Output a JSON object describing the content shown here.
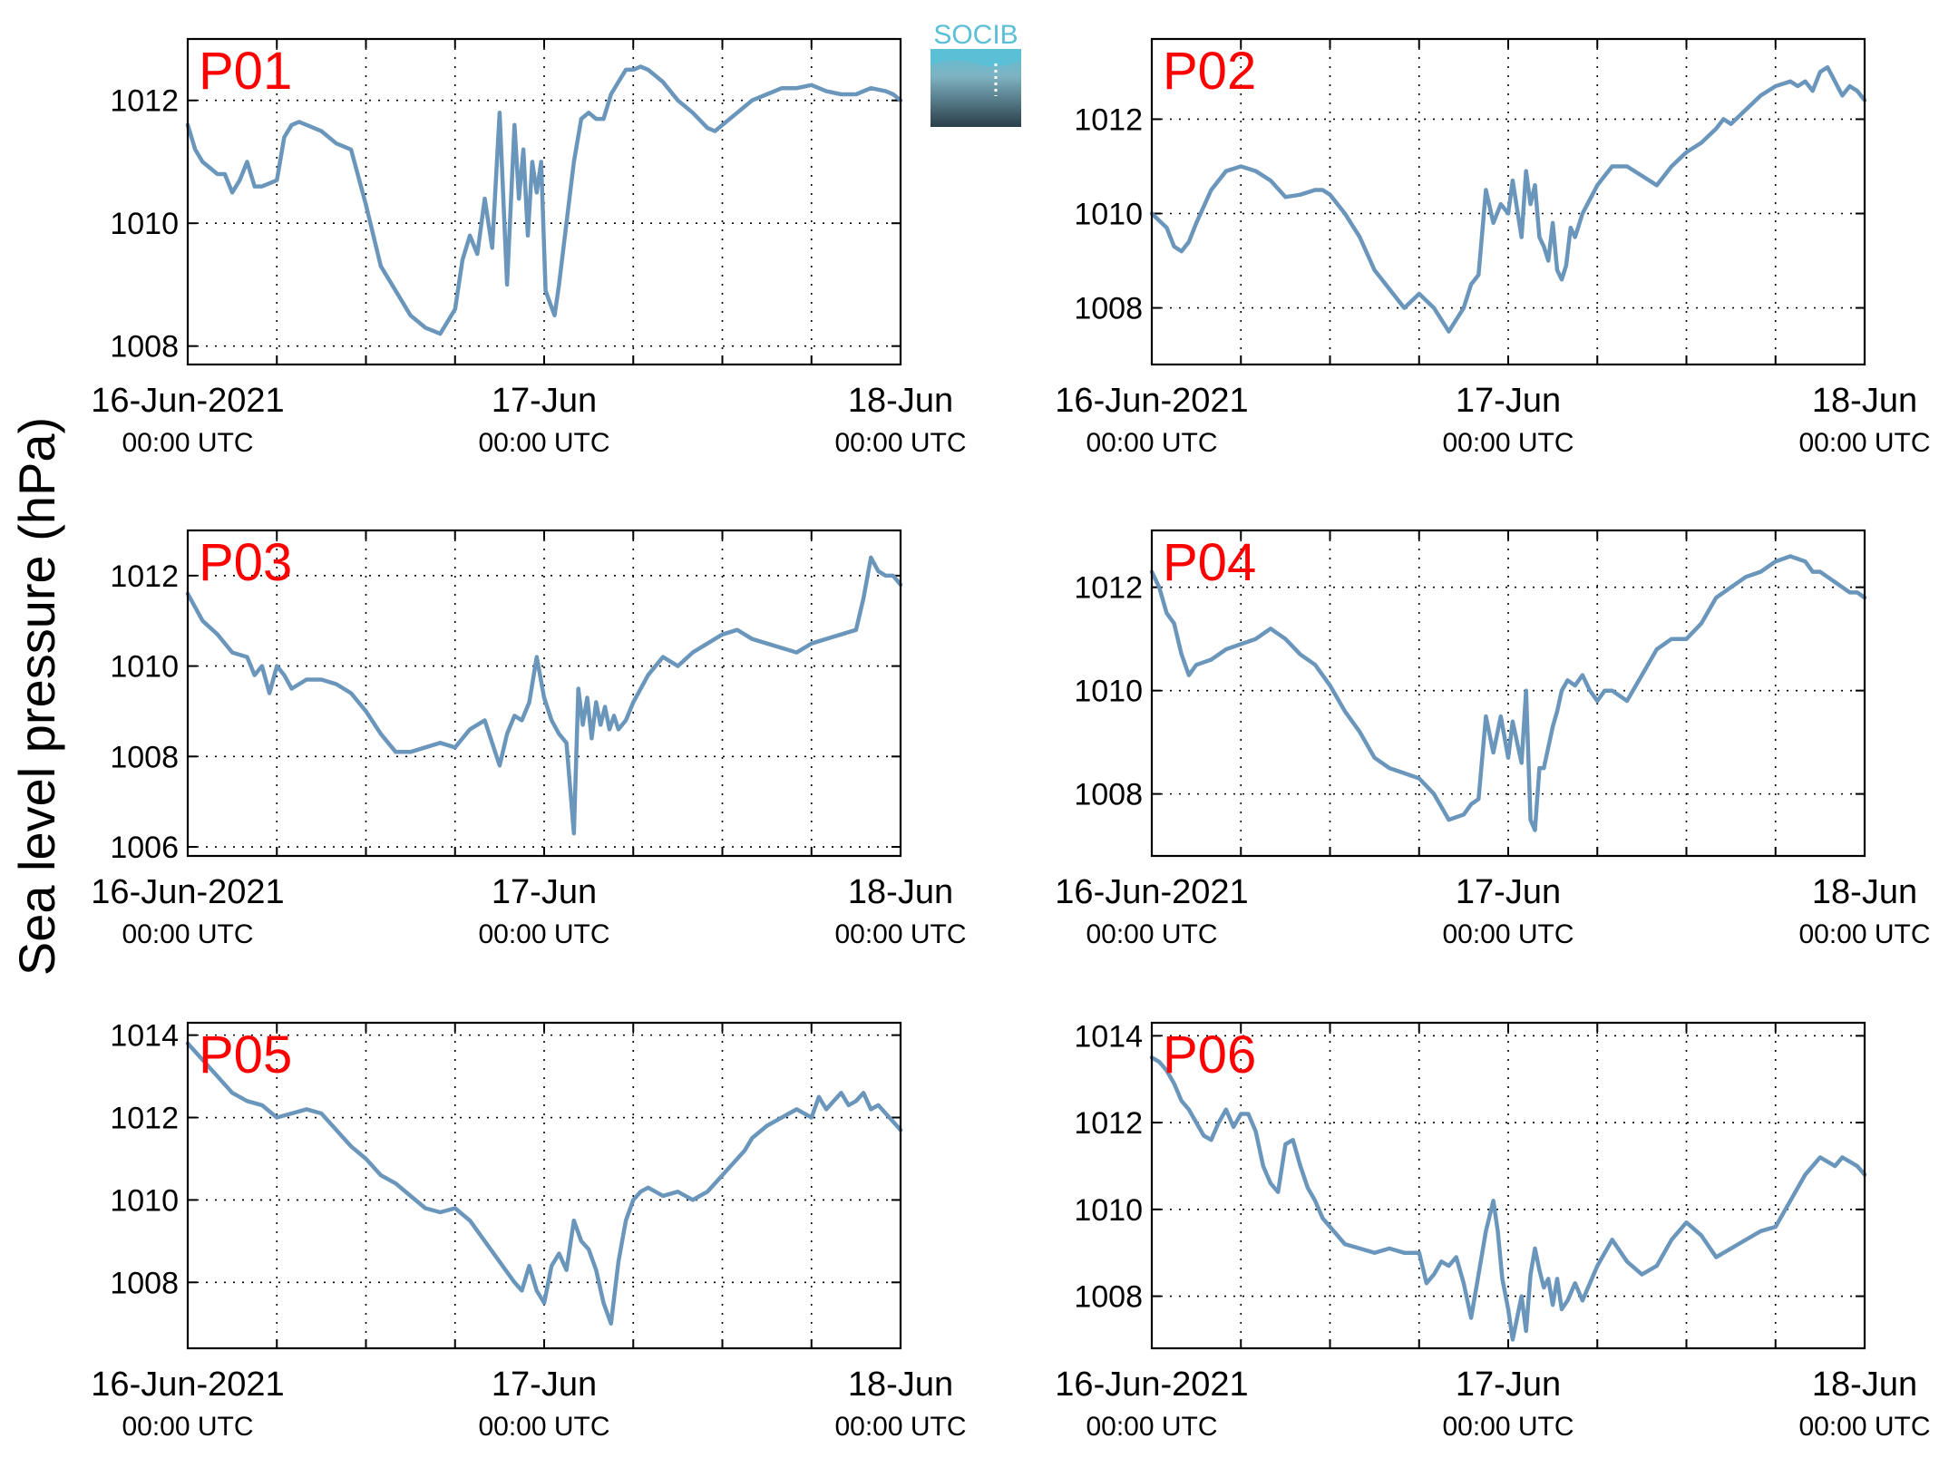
{
  "figure": {
    "ylabel": "Sea level pressure (hPa)",
    "logo_text": "SOCIB",
    "colors": {
      "line": "#6b96bc",
      "panel_label": "#ff0000",
      "axis": "#000000",
      "logo_top": "#5bbfd6",
      "logo_bottom": "#2b3e4a"
    },
    "x_tick_labels": [
      {
        "line1": "16-Jun-2021",
        "line2": "00:00 UTC"
      },
      {
        "line1": "17-Jun",
        "line2": "00:00 UTC"
      },
      {
        "line1": "18-Jun",
        "line2": "00:00 UTC"
      }
    ]
  },
  "chart_data": [
    {
      "type": "line",
      "label": "P01",
      "x_unit": "hours since 16-Jun-2021 00:00 UTC",
      "xlim": [
        0,
        48
      ],
      "ylim": [
        1007.7,
        1013
      ],
      "yticks": [
        1008,
        1010,
        1012
      ],
      "grid": true,
      "x": [
        0,
        0.5,
        1,
        1.5,
        2,
        2.5,
        3,
        3.5,
        4,
        4.5,
        5,
        6,
        6.5,
        7,
        7.5,
        8,
        8.5,
        9,
        10,
        11,
        12,
        13,
        14,
        15,
        16,
        17,
        18,
        18.5,
        19,
        19.5,
        20,
        20.5,
        21,
        21.5,
        22,
        22.3,
        22.6,
        22.9,
        23.2,
        23.5,
        23.8,
        24.1,
        24.4,
        24.7,
        25,
        25.3,
        25.6,
        26,
        26.5,
        27,
        27.5,
        28,
        28.5,
        29,
        29.5,
        30,
        30.5,
        31,
        32,
        33,
        34,
        35,
        35.5,
        36,
        37,
        38,
        39,
        40,
        41,
        42,
        43,
        44,
        45,
        46,
        47,
        47.5,
        48
      ],
      "y": [
        1011.6,
        1011.2,
        1011.0,
        1010.9,
        1010.8,
        1010.8,
        1010.5,
        1010.7,
        1011.0,
        1010.6,
        1010.6,
        1010.7,
        1011.4,
        1011.6,
        1011.65,
        1011.6,
        1011.55,
        1011.5,
        1011.3,
        1011.2,
        1010.3,
        1009.3,
        1008.9,
        1008.5,
        1008.3,
        1008.2,
        1008.6,
        1009.4,
        1009.8,
        1009.5,
        1010.4,
        1009.6,
        1011.8,
        1009.0,
        1011.6,
        1010.4,
        1011.2,
        1009.8,
        1011.0,
        1010.5,
        1011.0,
        1008.9,
        1008.7,
        1008.5,
        1009.0,
        1009.6,
        1010.2,
        1011.0,
        1011.7,
        1011.8,
        1011.7,
        1011.7,
        1012.1,
        1012.3,
        1012.5,
        1012.5,
        1012.55,
        1012.5,
        1012.3,
        1012.0,
        1011.8,
        1011.55,
        1011.5,
        1011.6,
        1011.8,
        1012.0,
        1012.1,
        1012.2,
        1012.2,
        1012.25,
        1012.15,
        1012.1,
        1012.1,
        1012.2,
        1012.15,
        1012.1,
        1012.0
      ]
    },
    {
      "type": "line",
      "label": "P02",
      "x_unit": "hours since 16-Jun-2021 00:00 UTC",
      "xlim": [
        0,
        48
      ],
      "ylim": [
        1006.8,
        1013.7
      ],
      "yticks": [
        1008,
        1010,
        1012
      ],
      "grid": true,
      "x": [
        0,
        1,
        1.5,
        2,
        2.5,
        3,
        4,
        5,
        6,
        7,
        8,
        9,
        10,
        11,
        11.5,
        12,
        13,
        14,
        15,
        16,
        17,
        18,
        19,
        20,
        21,
        21.5,
        22,
        22.5,
        23,
        23.5,
        24,
        24.3,
        24.6,
        24.9,
        25.2,
        25.5,
        25.8,
        26.1,
        26.4,
        26.7,
        27,
        27.3,
        27.6,
        27.9,
        28.2,
        28.5,
        29,
        29.5,
        30,
        30.5,
        31,
        32,
        33,
        34,
        35,
        36,
        37,
        38,
        38.5,
        39,
        40,
        41,
        42,
        43,
        43.5,
        44,
        44.5,
        45,
        45.5,
        46,
        46.5,
        47,
        47.5,
        48
      ],
      "y": [
        1010.0,
        1009.7,
        1009.3,
        1009.2,
        1009.4,
        1009.8,
        1010.5,
        1010.9,
        1011.0,
        1010.9,
        1010.7,
        1010.35,
        1010.4,
        1010.5,
        1010.5,
        1010.4,
        1010.0,
        1009.5,
        1008.8,
        1008.4,
        1008.0,
        1008.3,
        1008.0,
        1007.5,
        1008.0,
        1008.5,
        1008.7,
        1010.5,
        1009.8,
        1010.2,
        1010.0,
        1010.7,
        1010.1,
        1009.5,
        1010.9,
        1010.2,
        1010.6,
        1009.5,
        1009.3,
        1009.0,
        1009.8,
        1008.8,
        1008.6,
        1008.9,
        1009.7,
        1009.5,
        1010.0,
        1010.3,
        1010.6,
        1010.8,
        1011.0,
        1011.0,
        1010.8,
        1010.6,
        1011.0,
        1011.3,
        1011.5,
        1011.8,
        1012.0,
        1011.9,
        1012.2,
        1012.5,
        1012.7,
        1012.8,
        1012.7,
        1012.8,
        1012.6,
        1013.0,
        1013.1,
        1012.8,
        1012.5,
        1012.7,
        1012.6,
        1012.4
      ]
    },
    {
      "type": "line",
      "label": "P03",
      "x_unit": "hours since 16-Jun-2021 00:00 UTC",
      "xlim": [
        0,
        48
      ],
      "ylim": [
        1005.8,
        1013
      ],
      "yticks": [
        1006,
        1008,
        1010,
        1012
      ],
      "grid": true,
      "x": [
        0,
        1,
        2,
        3,
        4,
        4.5,
        5,
        5.5,
        6,
        6.5,
        7,
        7.5,
        8,
        9,
        10,
        11,
        12,
        13,
        14,
        15,
        16,
        17,
        18,
        19,
        20,
        21,
        21.5,
        22,
        22.5,
        23,
        23.5,
        24,
        24.5,
        25,
        25.5,
        26,
        26.3,
        26.6,
        26.9,
        27.2,
        27.5,
        27.8,
        28.1,
        28.4,
        28.7,
        29,
        29.5,
        30,
        31,
        32,
        33,
        34,
        35,
        36,
        37,
        38,
        39,
        40,
        41,
        42,
        43,
        44,
        45,
        45.5,
        46,
        46.5,
        47,
        47.5,
        48
      ],
      "y": [
        1011.6,
        1011.0,
        1010.7,
        1010.3,
        1010.2,
        1009.8,
        1010.0,
        1009.4,
        1010.0,
        1009.8,
        1009.5,
        1009.6,
        1009.7,
        1009.7,
        1009.6,
        1009.4,
        1009.0,
        1008.5,
        1008.1,
        1008.1,
        1008.2,
        1008.3,
        1008.2,
        1008.6,
        1008.8,
        1007.8,
        1008.5,
        1008.9,
        1008.8,
        1009.2,
        1010.2,
        1009.3,
        1008.8,
        1008.5,
        1008.3,
        1006.3,
        1009.5,
        1008.7,
        1009.3,
        1008.4,
        1009.2,
        1008.7,
        1009.1,
        1008.6,
        1008.9,
        1008.6,
        1008.8,
        1009.2,
        1009.8,
        1010.2,
        1010.0,
        1010.3,
        1010.5,
        1010.7,
        1010.8,
        1010.6,
        1010.5,
        1010.4,
        1010.3,
        1010.5,
        1010.6,
        1010.7,
        1010.8,
        1011.5,
        1012.4,
        1012.1,
        1012.0,
        1012.0,
        1011.8
      ]
    },
    {
      "type": "line",
      "label": "P04",
      "x_unit": "hours since 16-Jun-2021 00:00 UTC",
      "xlim": [
        0,
        48
      ],
      "ylim": [
        1006.8,
        1013.1
      ],
      "yticks": [
        1008,
        1010,
        1012
      ],
      "grid": true,
      "x": [
        0,
        0.5,
        1,
        1.5,
        2,
        2.5,
        3,
        4,
        5,
        6,
        7,
        8,
        9,
        10,
        11,
        12,
        13,
        14,
        15,
        16,
        17,
        18,
        19,
        20,
        21,
        21.5,
        22,
        22.5,
        23,
        23.5,
        24,
        24.3,
        24.6,
        24.9,
        25.2,
        25.5,
        25.8,
        26.1,
        26.4,
        26.7,
        27,
        27.3,
        27.6,
        28,
        28.5,
        29,
        29.5,
        30,
        30.5,
        31,
        32,
        33,
        34,
        35,
        36,
        37,
        38,
        39,
        40,
        41,
        42,
        43,
        44,
        44.5,
        45,
        45.5,
        46,
        46.5,
        47,
        47.5,
        48
      ],
      "y": [
        1012.3,
        1012.0,
        1011.5,
        1011.3,
        1010.7,
        1010.3,
        1010.5,
        1010.6,
        1010.8,
        1010.9,
        1011.0,
        1011.2,
        1011.0,
        1010.7,
        1010.5,
        1010.1,
        1009.6,
        1009.2,
        1008.7,
        1008.5,
        1008.4,
        1008.3,
        1008.0,
        1007.5,
        1007.6,
        1007.8,
        1007.9,
        1009.5,
        1008.8,
        1009.5,
        1008.7,
        1009.4,
        1009.0,
        1008.6,
        1010.0,
        1007.5,
        1007.3,
        1008.5,
        1008.5,
        1008.9,
        1009.3,
        1009.6,
        1010.0,
        1010.2,
        1010.1,
        1010.3,
        1010.0,
        1009.8,
        1010.0,
        1010.0,
        1009.8,
        1010.3,
        1010.8,
        1011.0,
        1011.0,
        1011.3,
        1011.8,
        1012.0,
        1012.2,
        1012.3,
        1012.5,
        1012.6,
        1012.5,
        1012.3,
        1012.3,
        1012.2,
        1012.1,
        1012.0,
        1011.9,
        1011.9,
        1011.8
      ]
    },
    {
      "type": "line",
      "label": "P05",
      "x_unit": "hours since 16-Jun-2021 00:00 UTC",
      "xlim": [
        0,
        48
      ],
      "ylim": [
        1006.4,
        1014.3
      ],
      "yticks": [
        1008,
        1010,
        1012,
        1014
      ],
      "grid": true,
      "x": [
        0,
        1,
        2,
        3,
        4,
        5,
        6,
        7,
        8,
        9,
        10,
        11,
        12,
        13,
        14,
        15,
        16,
        17,
        18,
        19,
        20,
        21,
        22,
        22.5,
        23,
        23.5,
        24,
        24.5,
        25,
        25.5,
        26,
        26.5,
        27,
        27.5,
        28,
        28.5,
        29,
        29.5,
        30,
        30.5,
        31,
        31.5,
        32,
        33,
        34,
        35,
        36,
        37,
        37.5,
        38,
        39,
        40,
        41,
        42,
        42.5,
        43,
        43.5,
        44,
        44.5,
        45,
        45.5,
        46,
        46.5,
        47,
        47.5,
        48
      ],
      "y": [
        1013.8,
        1013.4,
        1013.0,
        1012.6,
        1012.4,
        1012.3,
        1012.0,
        1012.1,
        1012.2,
        1012.1,
        1011.7,
        1011.3,
        1011.0,
        1010.6,
        1010.4,
        1010.1,
        1009.8,
        1009.7,
        1009.8,
        1009.5,
        1009.0,
        1008.5,
        1008.0,
        1007.8,
        1008.4,
        1007.8,
        1007.5,
        1008.4,
        1008.7,
        1008.3,
        1009.5,
        1009.0,
        1008.8,
        1008.3,
        1007.5,
        1007.0,
        1008.5,
        1009.5,
        1010.0,
        1010.2,
        1010.3,
        1010.2,
        1010.1,
        1010.2,
        1010.0,
        1010.2,
        1010.6,
        1011.0,
        1011.2,
        1011.5,
        1011.8,
        1012.0,
        1012.2,
        1012.0,
        1012.5,
        1012.2,
        1012.4,
        1012.6,
        1012.3,
        1012.4,
        1012.6,
        1012.2,
        1012.3,
        1012.1,
        1011.9,
        1011.7
      ]
    },
    {
      "type": "line",
      "label": "P06",
      "x_unit": "hours since 16-Jun-2021 00:00 UTC",
      "xlim": [
        0,
        48
      ],
      "ylim": [
        1006.8,
        1014.3
      ],
      "yticks": [
        1008,
        1010,
        1012,
        1014
      ],
      "grid": true,
      "x": [
        0,
        0.5,
        1,
        1.5,
        2,
        2.5,
        3,
        3.5,
        4,
        4.5,
        5,
        5.5,
        6,
        6.5,
        7,
        7.5,
        8,
        8.5,
        9,
        9.5,
        10,
        10.5,
        11,
        11.5,
        12,
        13,
        14,
        15,
        16,
        17,
        18,
        18.5,
        19,
        19.5,
        20,
        20.5,
        21,
        21.5,
        22,
        22.5,
        23,
        23.3,
        23.6,
        24,
        24.3,
        24.6,
        24.9,
        25.2,
        25.5,
        25.8,
        26.1,
        26.4,
        26.7,
        27,
        27.3,
        27.6,
        28,
        28.5,
        29,
        29.5,
        30,
        31,
        32,
        33,
        34,
        35,
        36,
        37,
        38,
        39,
        40,
        41,
        42,
        43,
        43.5,
        44,
        44.5,
        45,
        45.5,
        46,
        46.5,
        47,
        47.5,
        48
      ],
      "y": [
        1013.5,
        1013.4,
        1013.2,
        1012.9,
        1012.5,
        1012.3,
        1012.0,
        1011.7,
        1011.6,
        1012.0,
        1012.3,
        1011.9,
        1012.2,
        1012.2,
        1011.8,
        1011.0,
        1010.6,
        1010.4,
        1011.5,
        1011.6,
        1011.0,
        1010.5,
        1010.2,
        1009.8,
        1009.6,
        1009.2,
        1009.1,
        1009.0,
        1009.1,
        1009.0,
        1009.0,
        1008.3,
        1008.5,
        1008.8,
        1008.7,
        1008.9,
        1008.3,
        1007.5,
        1008.5,
        1009.5,
        1010.2,
        1009.5,
        1008.4,
        1007.7,
        1007.0,
        1007.5,
        1008.0,
        1007.2,
        1008.5,
        1009.1,
        1008.6,
        1008.2,
        1008.4,
        1007.8,
        1008.4,
        1007.7,
        1007.9,
        1008.3,
        1007.9,
        1008.3,
        1008.7,
        1009.3,
        1008.8,
        1008.5,
        1008.7,
        1009.3,
        1009.7,
        1009.4,
        1008.9,
        1009.1,
        1009.3,
        1009.5,
        1009.6,
        1010.2,
        1010.5,
        1010.8,
        1011.0,
        1011.2,
        1011.1,
        1011.0,
        1011.2,
        1011.1,
        1011.0,
        1010.8
      ]
    }
  ]
}
